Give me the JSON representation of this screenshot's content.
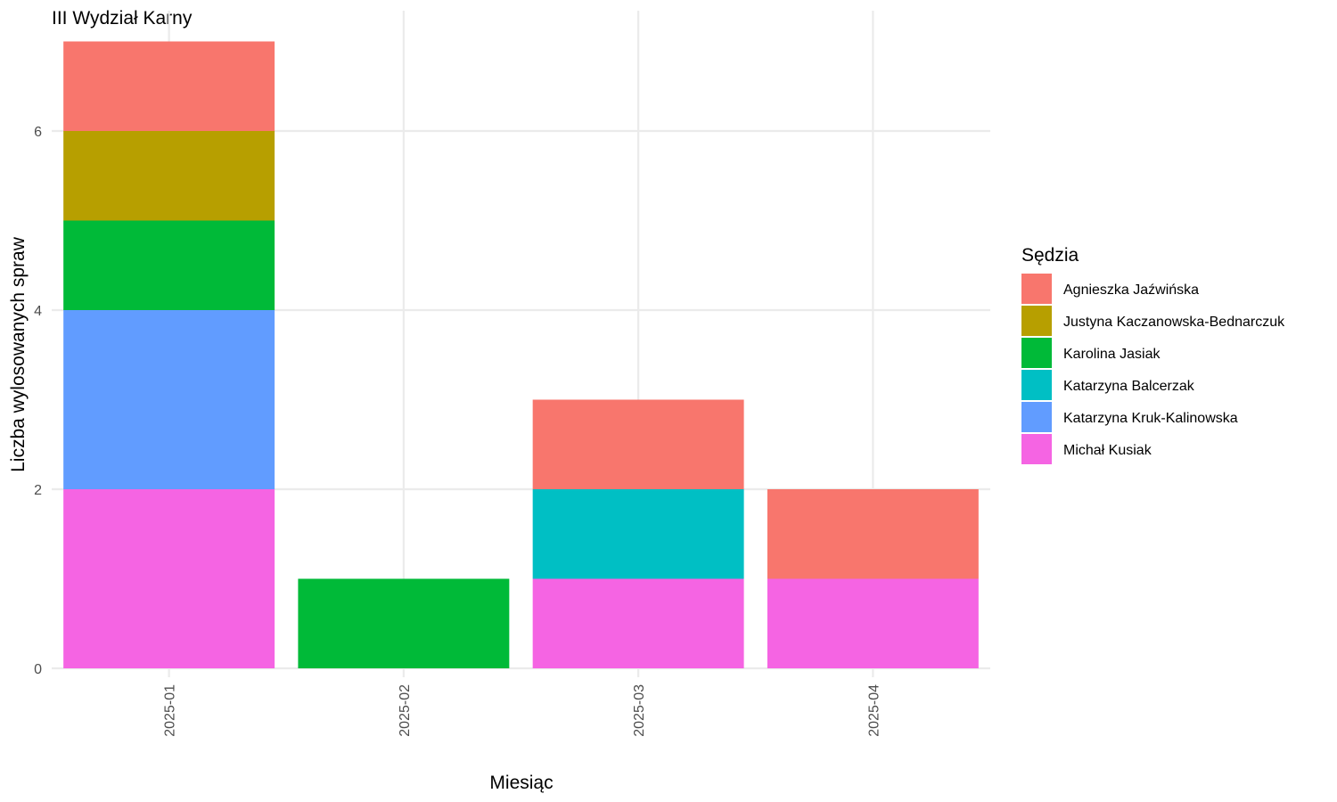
{
  "chart_data": {
    "type": "bar",
    "stacked": true,
    "title": "III Wydział Karny",
    "xlabel": "Miesiąc",
    "ylabel": "Liczba wylosowanych spraw",
    "categories": [
      "2025-01",
      "2025-02",
      "2025-03",
      "2025-04"
    ],
    "ylim": [
      0,
      7.2
    ],
    "yticks": [
      0,
      2,
      4,
      6
    ],
    "grid": true,
    "legend": {
      "title": "Sędzia",
      "position": "right"
    },
    "series": [
      {
        "name": "Agnieszka Jaźwińska",
        "color": "#F8766D",
        "values": [
          1,
          0,
          1,
          1
        ]
      },
      {
        "name": "Justyna Kaczanowska-Bednarczuk",
        "color": "#B79F00",
        "values": [
          1,
          0,
          0,
          0
        ]
      },
      {
        "name": "Karolina Jasiak",
        "color": "#00BA38",
        "values": [
          1,
          1,
          0,
          0
        ]
      },
      {
        "name": "Katarzyna Balcerzak",
        "color": "#00BFC4",
        "values": [
          0,
          0,
          1,
          0
        ]
      },
      {
        "name": "Katarzyna Kruk-Kalinowska",
        "color": "#619CFF",
        "values": [
          2,
          0,
          0,
          0
        ]
      },
      {
        "name": "Michał Kusiak",
        "color": "#F564E3",
        "values": [
          2,
          0,
          1,
          1
        ]
      }
    ]
  }
}
